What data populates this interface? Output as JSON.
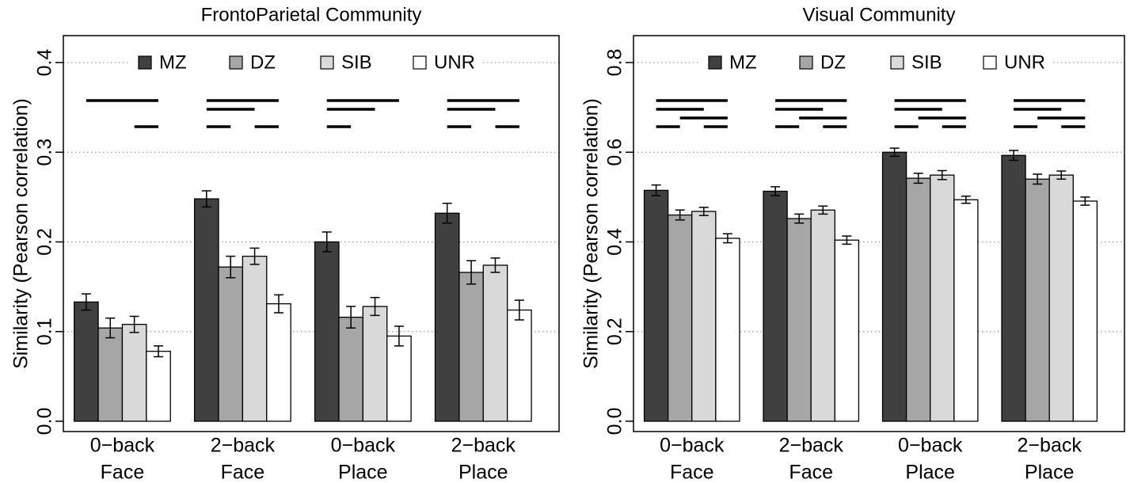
{
  "chart_data": [
    {
      "type": "bar",
      "title": "FrontoParietal Community",
      "y_label": "Similarity (Pearson correlation)",
      "categories": [
        [
          "0−back",
          "Face"
        ],
        [
          "2−back",
          "Face"
        ],
        [
          "0−back",
          "Place"
        ],
        [
          "2−back",
          "Place"
        ]
      ],
      "series": [
        {
          "name": "MZ",
          "color": "#404040",
          "values": [
            0.133,
            0.248,
            0.2,
            0.232
          ],
          "errors": [
            0.009,
            0.009,
            0.011,
            0.011
          ]
        },
        {
          "name": "DZ",
          "color": "#a6a6a6",
          "values": [
            0.104,
            0.172,
            0.116,
            0.166
          ],
          "errors": [
            0.011,
            0.012,
            0.012,
            0.013
          ]
        },
        {
          "name": "SIB",
          "color": "#d9d9d9",
          "values": [
            0.108,
            0.184,
            0.128,
            0.174
          ],
          "errors": [
            0.009,
            0.009,
            0.01,
            0.008
          ]
        },
        {
          "name": "UNR",
          "color": "#ffffff",
          "values": [
            0.078,
            0.131,
            0.095,
            0.124
          ],
          "errors": [
            0.006,
            0.01,
            0.011,
            0.011
          ]
        }
      ],
      "ylim": [
        0,
        0.4
      ],
      "yticks": [
        {
          "value": 0,
          "label": "0.0"
        },
        0.1,
        0.2,
        0.3,
        0.4
      ],
      "grid": true,
      "legend": "top"
    },
    {
      "type": "bar",
      "title": "Visual Community",
      "y_label": "Similarity (Pearson correlation)",
      "categories": [
        [
          "0−back",
          "Face"
        ],
        [
          "2−back",
          "Face"
        ],
        [
          "0−back",
          "Place"
        ],
        [
          "2−back",
          "Place"
        ]
      ],
      "series": [
        {
          "name": "MZ",
          "color": "#404040",
          "values": [
            0.515,
            0.513,
            0.6,
            0.593
          ],
          "errors": [
            0.012,
            0.01,
            0.009,
            0.011
          ]
        },
        {
          "name": "DZ",
          "color": "#a6a6a6",
          "values": [
            0.46,
            0.452,
            0.542,
            0.54
          ],
          "errors": [
            0.011,
            0.01,
            0.011,
            0.011
          ]
        },
        {
          "name": "SIB",
          "color": "#d9d9d9",
          "values": [
            0.468,
            0.471,
            0.549,
            0.549
          ],
          "errors": [
            0.009,
            0.009,
            0.01,
            0.009
          ]
        },
        {
          "name": "UNR",
          "color": "#ffffff",
          "values": [
            0.408,
            0.404,
            0.494,
            0.491
          ],
          "errors": [
            0.01,
            0.009,
            0.008,
            0.009
          ]
        }
      ],
      "ylim": [
        0,
        0.8
      ],
      "yticks": [
        {
          "value": 0,
          "label": "0.0"
        },
        0.2,
        0.4,
        0.6,
        0.8
      ],
      "grid": true,
      "legend": "top"
    }
  ]
}
